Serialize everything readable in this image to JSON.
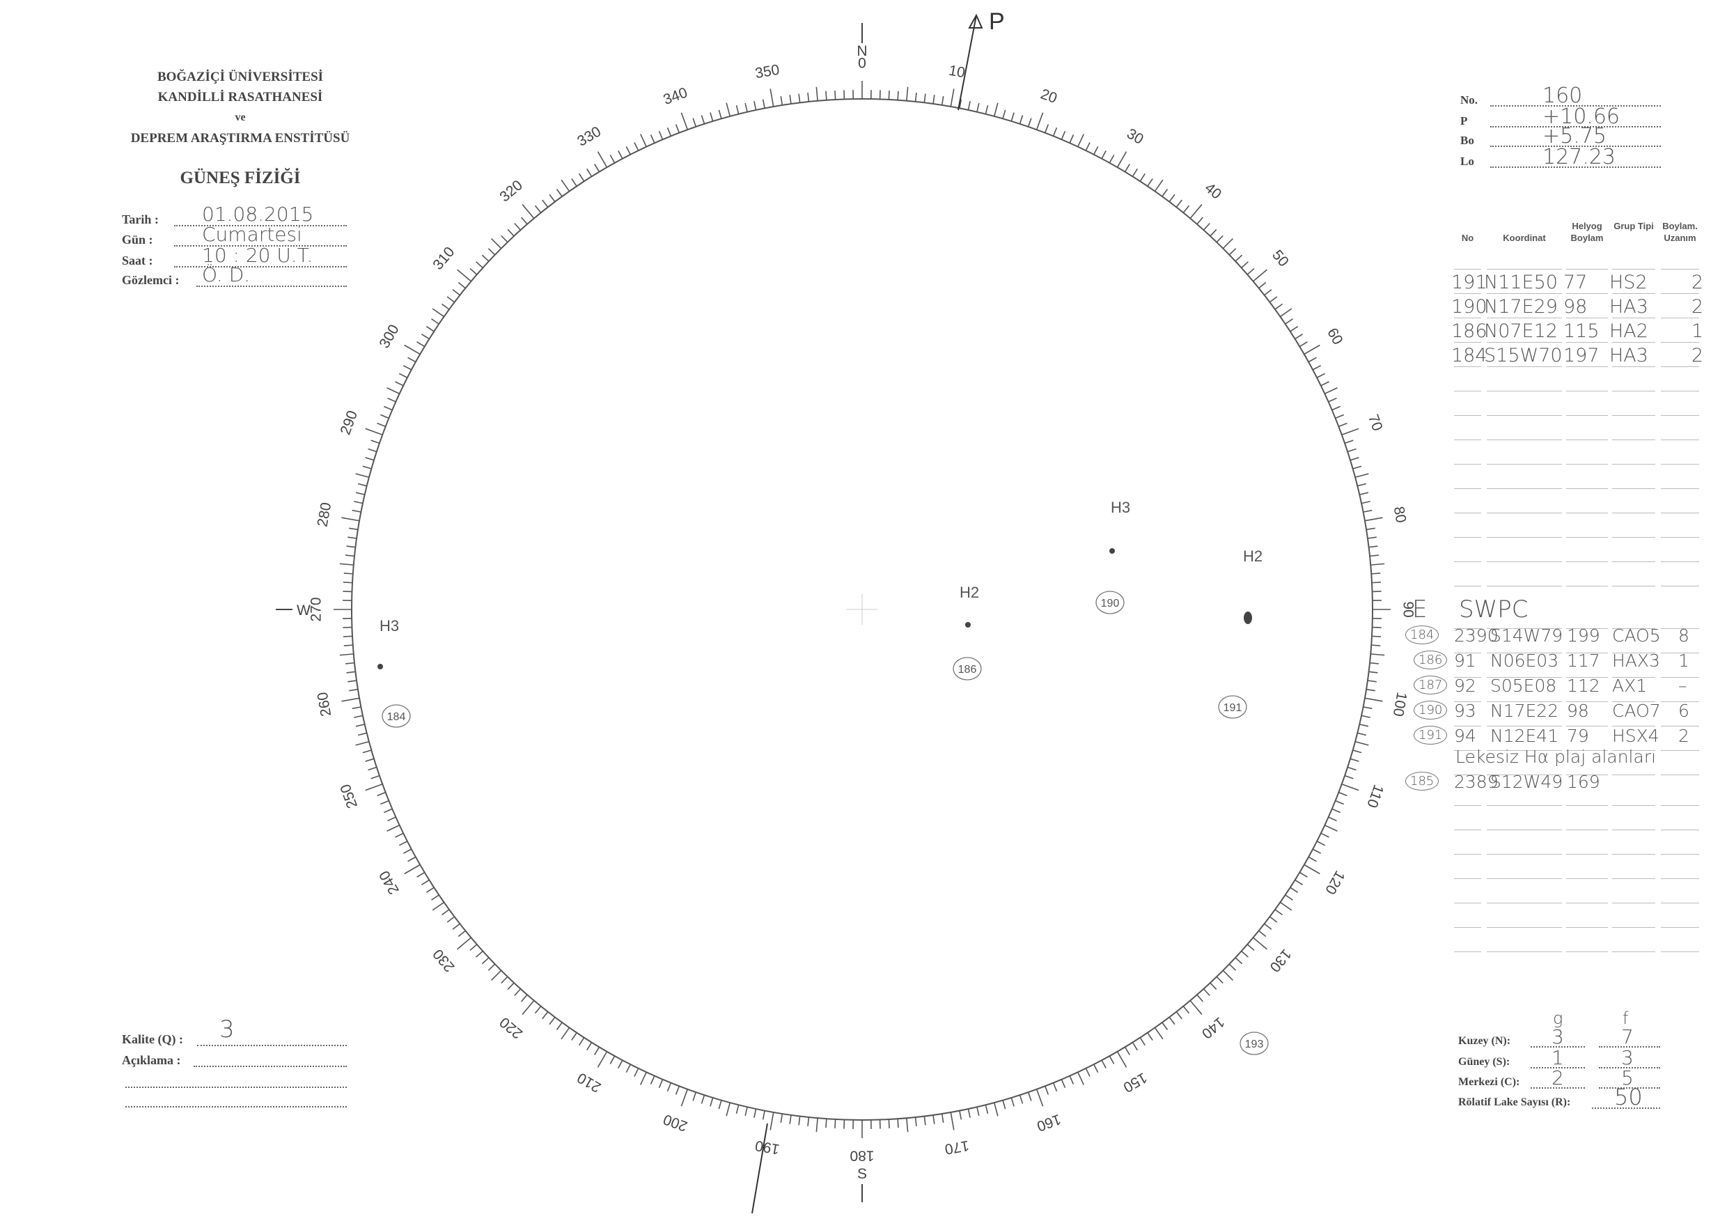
{
  "header": {
    "line1": "BOĞAZİÇİ ÜNİVERSİTESİ",
    "line2": "KANDİLLİ RASATHANESİ",
    "line3": "ve",
    "line4": "DEPREM ARAŞTIRMA ENSTİTÜSÜ",
    "title": "GÜNEŞ FİZİĞİ"
  },
  "info": [
    {
      "label": "Tarih :",
      "value": "01.08.2015"
    },
    {
      "label": "Gün :",
      "value": "Cumartesi"
    },
    {
      "label": "Saat :",
      "value": "10 : 20 U.T."
    },
    {
      "label": "Gözlemci :",
      "value": "Ö. D."
    }
  ],
  "quality": {
    "label": "Kalite (Q) :",
    "value": "3",
    "comment_label": "Açıklama :"
  },
  "params": [
    {
      "label": "No.",
      "value": "160"
    },
    {
      "label": "P",
      "value": "+10.66"
    },
    {
      "label": "Bo",
      "value": "+5.75"
    },
    {
      "label": "Lo",
      "value": "127.23"
    }
  ],
  "table": {
    "headers": [
      "No",
      "Koordinat",
      "Helyog Boylam",
      "Grup Tipi",
      "Boylam. Uzanım"
    ],
    "rows": [
      [
        "191",
        "N11E50",
        "77",
        "HS2",
        "2"
      ],
      [
        "190",
        "N17E29",
        "98",
        "HA3",
        "2"
      ],
      [
        "186",
        "N07E12",
        "115",
        "HA2",
        "1"
      ],
      [
        "184",
        "S15W70",
        "197",
        "HA3",
        "2"
      ]
    ]
  },
  "swpc": {
    "title": "SWPC",
    "rows": [
      [
        "184",
        "2390",
        "S14W79",
        "199",
        "CAO5",
        "8"
      ],
      [
        "186",
        "91",
        "N06E03",
        "117",
        "HAX3",
        "1"
      ],
      [
        "187",
        "92",
        "S05E08",
        "112",
        "AX1",
        "–"
      ],
      [
        "190",
        "93",
        "N17E22",
        "98",
        "CAO7",
        "6"
      ],
      [
        "191",
        "94",
        "N12E41",
        "79",
        "HSX4",
        "2"
      ]
    ],
    "note": "Lekesiz Hα plaj alanları",
    "extra": [
      "185",
      "2389",
      "S12W49",
      "169"
    ]
  },
  "counts": {
    "col_g": "g",
    "col_f": "f",
    "rows": [
      {
        "label": "Kuzey (N):",
        "g": "3",
        "f": "7"
      },
      {
        "label": "Güney (S):",
        "g": "1",
        "f": "3"
      },
      {
        "label": "Merkezi (C):",
        "g": "2",
        "f": "5"
      }
    ],
    "r_label": "Rölatif Lake Sayısı (R):",
    "r_value": "50"
  },
  "disk": {
    "north": "N",
    "south": "S",
    "west": "W",
    "east": "E",
    "p_label": "P",
    "scale_labels": [
      "0",
      "10",
      "20",
      "30",
      "40",
      "50",
      "60",
      "70",
      "80",
      "90",
      "100",
      "110",
      "120",
      "130",
      "140",
      "150",
      "160",
      "170",
      "180",
      "190",
      "200",
      "210",
      "220",
      "230",
      "240",
      "250",
      "260",
      "270",
      "280",
      "290",
      "300",
      "310",
      "320",
      "330",
      "340",
      "350"
    ],
    "groups": [
      {
        "no": "184",
        "type": "H3"
      },
      {
        "no": "186",
        "type": "H2"
      },
      {
        "no": "190",
        "type": "H3"
      },
      {
        "no": "191",
        "type": "H2"
      },
      {
        "no": "193",
        "type": ""
      }
    ]
  }
}
